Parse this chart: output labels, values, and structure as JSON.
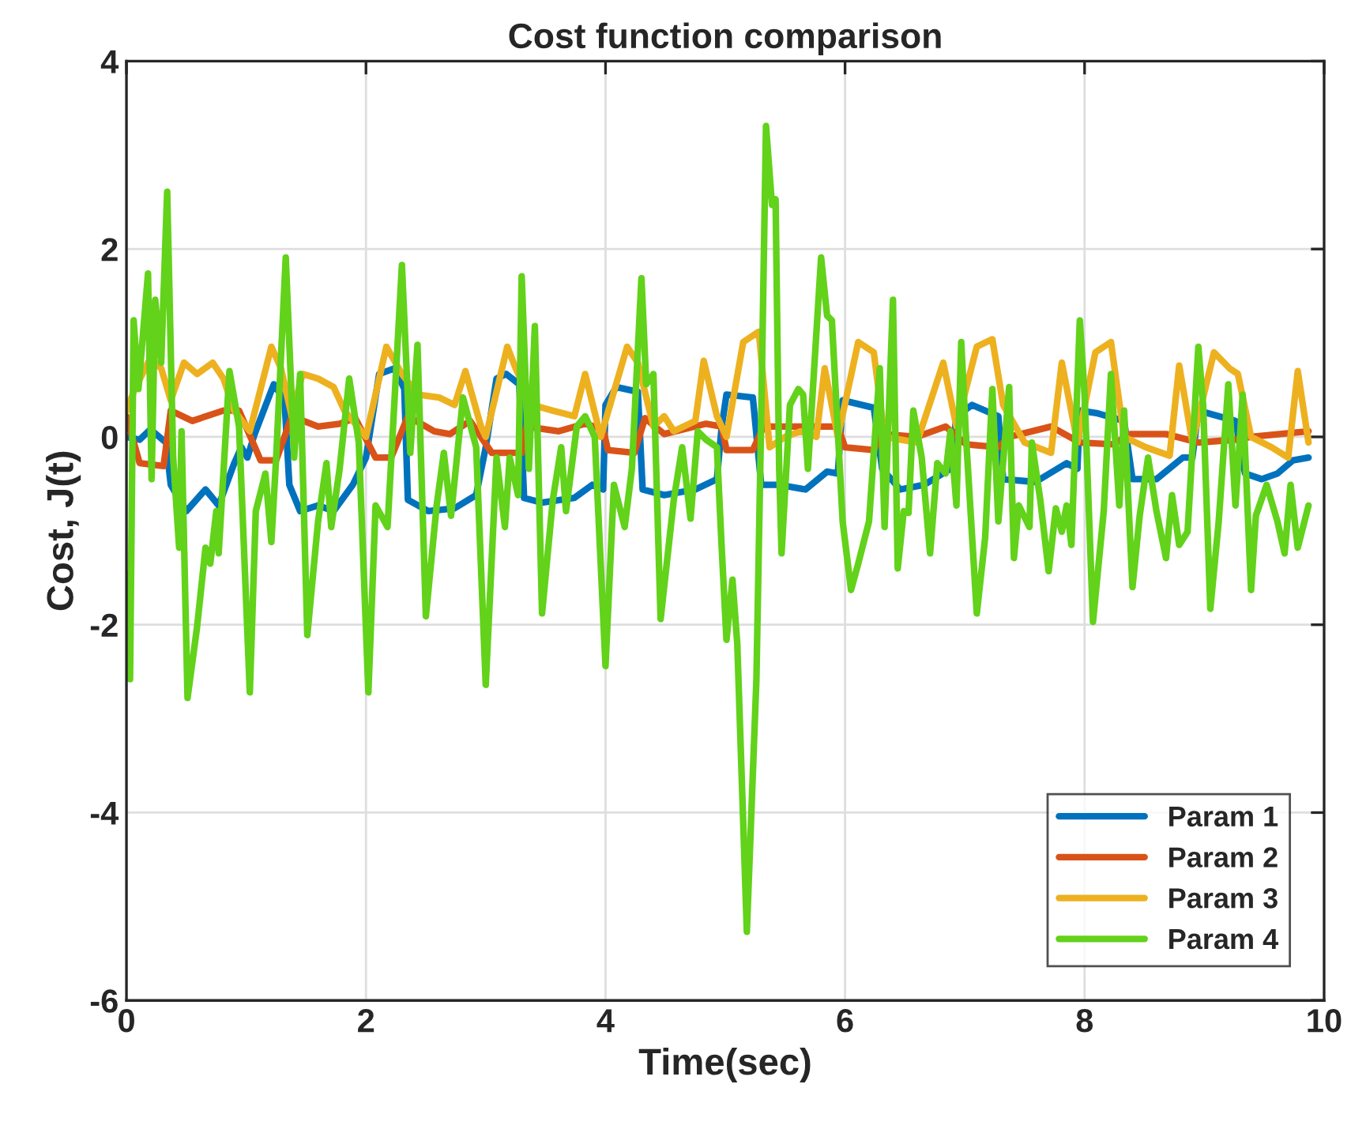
{
  "chart_data": {
    "type": "line",
    "title": "Cost function comparison",
    "xlabel": "Time(sec)",
    "ylabel": "Cost, J(t)",
    "xlim": [
      0,
      10
    ],
    "xticks": [
      0,
      2,
      4,
      6,
      8,
      10
    ],
    "ylim": [
      -6,
      4
    ],
    "yticks": [
      -6,
      -4,
      -2,
      0,
      2,
      4
    ],
    "grid": true,
    "legend": "bottom right",
    "line_style": "solid",
    "marker": "none",
    "series": [
      {
        "name": "Param 1",
        "color": "#0072bd",
        "x": [
          0,
          0.11,
          0.2,
          0.33,
          0.37,
          0.5,
          0.66,
          0.77,
          0.9,
          0.96,
          1.01,
          1.07,
          1.23,
          1.32,
          1.36,
          1.45,
          1.6,
          1.73,
          1.89,
          2.0,
          2.11,
          2.24,
          2.32,
          2.35,
          2.52,
          2.74,
          2.92,
          3.0,
          3.09,
          3.17,
          3.28,
          3.32,
          3.47,
          3.74,
          3.89,
          3.98,
          4.0,
          4.09,
          4.27,
          4.31,
          4.49,
          4.75,
          4.93,
          4.97,
          5.01,
          5.23,
          5.3,
          5.45,
          5.67,
          5.85,
          5.94,
          5.98,
          6.24,
          6.31,
          6.46,
          6.66,
          6.88,
          6.93,
          7.06,
          7.28,
          7.32,
          7.59,
          7.85,
          7.94,
          7.96,
          8.11,
          8.33,
          8.4,
          8.6,
          8.82,
          8.9,
          8.95,
          9.26,
          9.34,
          9.48,
          9.61,
          9.74,
          9.87
        ],
        "values": [
          0,
          -0.03,
          0.08,
          -0.06,
          -0.51,
          -0.79,
          -0.56,
          -0.73,
          -0.28,
          -0.11,
          -0.22,
          0.03,
          0.56,
          0.39,
          -0.51,
          -0.79,
          -0.73,
          -0.79,
          -0.51,
          -0.22,
          0.67,
          0.73,
          0.51,
          -0.67,
          -0.79,
          -0.76,
          -0.62,
          -0.11,
          0.62,
          0.67,
          0.56,
          -0.65,
          -0.7,
          -0.65,
          -0.51,
          -0.56,
          0.34,
          0.53,
          0.48,
          -0.56,
          -0.62,
          -0.56,
          -0.45,
          0.11,
          0.45,
          0.42,
          -0.51,
          -0.51,
          -0.56,
          -0.37,
          -0.39,
          0.39,
          0.31,
          -0.34,
          -0.56,
          -0.51,
          -0.34,
          0.22,
          0.34,
          0.22,
          -0.45,
          -0.48,
          -0.28,
          -0.34,
          0.28,
          0.25,
          0.17,
          -0.45,
          -0.45,
          -0.22,
          -0.22,
          0.28,
          0.17,
          -0.39,
          -0.45,
          -0.39,
          -0.25,
          -0.22
        ]
      },
      {
        "name": "Param 2",
        "color": "#d95319",
        "x": [
          0,
          0.11,
          0.31,
          0.37,
          0.55,
          0.81,
          0.94,
          1.12,
          1.25,
          1.38,
          1.6,
          1.78,
          1.91,
          2.08,
          2.21,
          2.35,
          2.57,
          2.7,
          2.87,
          3.05,
          3.22,
          3.3,
          3.34,
          3.61,
          3.83,
          3.98,
          4.02,
          4.24,
          4.33,
          4.49,
          4.84,
          4.97,
          5.01,
          5.23,
          5.32,
          5.63,
          5.94,
          6.0,
          6.24,
          6.31,
          6.6,
          6.84,
          7.01,
          7.28,
          7.37,
          7.72,
          7.96,
          8.24,
          8.38,
          8.68,
          8.95,
          9.26,
          9.39,
          9.87
        ],
        "values": [
          0.22,
          -0.28,
          -0.31,
          0.28,
          0.17,
          0.28,
          0.28,
          -0.25,
          -0.25,
          0.22,
          0.11,
          0.14,
          0.2,
          -0.22,
          -0.22,
          0.22,
          0.06,
          0.03,
          0.17,
          -0.17,
          -0.17,
          -0.17,
          0.11,
          0.06,
          0.14,
          0.08,
          -0.14,
          -0.17,
          0.2,
          0.03,
          0.14,
          0.11,
          -0.14,
          -0.14,
          0.11,
          0.11,
          0.11,
          -0.11,
          -0.14,
          0.03,
          0,
          0.11,
          -0.08,
          -0.11,
          0,
          0.11,
          -0.06,
          -0.08,
          0.03,
          0.03,
          -0.06,
          -0.03,
          0,
          0.06
        ]
      },
      {
        "name": "Param 3",
        "color": "#edb120",
        "x": [
          0,
          0.07,
          0.2,
          0.29,
          0.37,
          0.48,
          0.59,
          0.72,
          0.81,
          0.9,
          1.03,
          1.21,
          1.29,
          1.38,
          1.47,
          1.6,
          1.73,
          1.82,
          2.0,
          2.17,
          2.3,
          2.43,
          2.61,
          2.74,
          2.83,
          2.96,
          3.0,
          3.18,
          3.25,
          3.39,
          3.56,
          3.74,
          3.83,
          3.96,
          4.18,
          4.27,
          4.4,
          4.49,
          4.57,
          4.75,
          4.82,
          4.93,
          5.01,
          5.15,
          5.28,
          5.37,
          5.5,
          5.63,
          5.76,
          5.83,
          5.94,
          6.11,
          6.24,
          6.33,
          6.6,
          6.82,
          6.93,
          7.1,
          7.23,
          7.32,
          7.5,
          7.72,
          7.81,
          7.94,
          8.09,
          8.22,
          8.33,
          8.51,
          8.71,
          8.79,
          8.9,
          9.08,
          9.21,
          9.28,
          9.39,
          9.56,
          9.7,
          9.78,
          9.87
        ],
        "values": [
          0.28,
          0.51,
          0.84,
          0.73,
          0.39,
          0.79,
          0.67,
          0.79,
          0.62,
          0.28,
          0.06,
          0.96,
          0.73,
          0.22,
          0.67,
          0.62,
          0.53,
          0.28,
          0,
          0.96,
          0.67,
          0.45,
          0.42,
          0.34,
          0.7,
          0.11,
          0,
          0.96,
          0.73,
          0.34,
          0.28,
          0.22,
          0.67,
          0,
          0.96,
          0.79,
          0.11,
          0.22,
          0.06,
          0.17,
          0.81,
          0.22,
          0,
          1.01,
          1.12,
          -0.11,
          0,
          0.06,
          0,
          0.73,
          0,
          1.01,
          0.9,
          0,
          -0.06,
          0.79,
          0.11,
          0.96,
          1.04,
          0.34,
          -0.06,
          -0.17,
          0.79,
          -0.06,
          0.9,
          1.01,
          0,
          -0.11,
          -0.2,
          0.76,
          -0.06,
          0.9,
          0.73,
          0.67,
          0,
          -0.11,
          -0.22,
          0.7,
          -0.06
        ]
      },
      {
        "name": "Param 4",
        "color": "#62d21a",
        "x": [
          0,
          0.03,
          0.06,
          0.1,
          0.18,
          0.21,
          0.24,
          0.29,
          0.34,
          0.39,
          0.44,
          0.46,
          0.51,
          0.59,
          0.66,
          0.7,
          0.75,
          0.77,
          0.86,
          0.94,
          1.03,
          1.08,
          1.16,
          1.21,
          1.25,
          1.33,
          1.4,
          1.45,
          1.51,
          1.6,
          1.67,
          1.71,
          1.78,
          1.86,
          1.94,
          2.02,
          2.08,
          2.18,
          2.3,
          2.37,
          2.43,
          2.5,
          2.59,
          2.65,
          2.71,
          2.81,
          2.92,
          3.0,
          3.09,
          3.16,
          3.2,
          3.27,
          3.3,
          3.36,
          3.41,
          3.47,
          3.56,
          3.63,
          3.67,
          3.76,
          3.83,
          3.91,
          4.0,
          4.07,
          4.16,
          4.22,
          4.3,
          4.34,
          4.4,
          4.46,
          4.57,
          4.64,
          4.71,
          4.77,
          4.84,
          4.93,
          4.97,
          5.01,
          5.06,
          5.1,
          5.18,
          5.26,
          5.3,
          5.34,
          5.39,
          5.42,
          5.45,
          5.47,
          5.54,
          5.61,
          5.65,
          5.69,
          5.8,
          5.85,
          5.89,
          5.98,
          6.05,
          6.11,
          6.2,
          6.29,
          6.33,
          6.4,
          6.44,
          6.49,
          6.53,
          6.57,
          6.64,
          6.71,
          6.77,
          6.84,
          6.88,
          6.93,
          6.97,
          7.01,
          7.1,
          7.17,
          7.23,
          7.28,
          7.37,
          7.41,
          7.45,
          7.54,
          7.56,
          7.63,
          7.7,
          7.76,
          7.81,
          7.85,
          7.89,
          7.96,
          8.0,
          8.07,
          8.16,
          8.22,
          8.29,
          8.33,
          8.4,
          8.46,
          8.53,
          8.6,
          8.68,
          8.73,
          8.79,
          8.86,
          8.95,
          8.99,
          9.05,
          9.12,
          9.2,
          9.26,
          9.32,
          9.39,
          9.43,
          9.52,
          9.61,
          9.67,
          9.72,
          9.78,
          9.87
        ],
        "values": [
          -1.46,
          -2.58,
          1.24,
          0.51,
          1.74,
          -0.45,
          1.46,
          0.79,
          2.61,
          -0.22,
          -1.18,
          0.06,
          -2.78,
          -2.02,
          -1.18,
          -1.35,
          -0.79,
          -1.24,
          0.7,
          0.11,
          -2.72,
          -0.79,
          -0.39,
          -1.12,
          -0.22,
          1.91,
          -0.22,
          0.67,
          -2.11,
          -0.9,
          -0.28,
          -0.96,
          -0.34,
          0.62,
          -0.06,
          -2.72,
          -0.73,
          -0.96,
          1.83,
          -0.17,
          0.98,
          -1.91,
          -0.73,
          -0.17,
          -0.84,
          0.42,
          -0.11,
          -2.64,
          -0.22,
          -0.96,
          -0.22,
          -0.62,
          1.71,
          -0.34,
          1.18,
          -1.88,
          -0.67,
          -0.11,
          -0.79,
          0.11,
          0.22,
          0,
          -2.44,
          -0.51,
          -0.96,
          -0.34,
          1.69,
          0.56,
          0.67,
          -1.94,
          -0.67,
          -0.11,
          -0.87,
          0.06,
          -0.03,
          -0.11,
          -1.18,
          -2.16,
          -1.52,
          -2.2,
          -5.27,
          -2.58,
          0.22,
          3.31,
          2.47,
          2.53,
          -0.34,
          -1.24,
          0.34,
          0.51,
          0.45,
          -0.34,
          1.91,
          1.29,
          1.24,
          -0.9,
          -1.63,
          -1.35,
          -0.9,
          0.73,
          -0.96,
          1.46,
          -1.4,
          -0.79,
          -0.81,
          0.28,
          -0.22,
          -1.24,
          -0.28,
          -0.39,
          0.06,
          -0.73,
          1.01,
          0,
          -1.88,
          -1.07,
          0.51,
          -0.9,
          0.53,
          -1.29,
          -0.73,
          -0.96,
          -0.06,
          -0.67,
          -1.43,
          -0.76,
          -1.01,
          -0.73,
          -1.15,
          1.24,
          0.45,
          -1.97,
          -0.79,
          0.67,
          -0.73,
          0.28,
          -1.6,
          -0.84,
          -0.22,
          -0.79,
          -1.29,
          -0.62,
          -1.15,
          -1.01,
          0.96,
          0.34,
          -1.83,
          -0.9,
          0.56,
          -0.73,
          0.45,
          -1.63,
          -0.84,
          -0.51,
          -0.9,
          -1.24,
          -0.51,
          -1.18,
          -0.73
        ]
      }
    ]
  }
}
